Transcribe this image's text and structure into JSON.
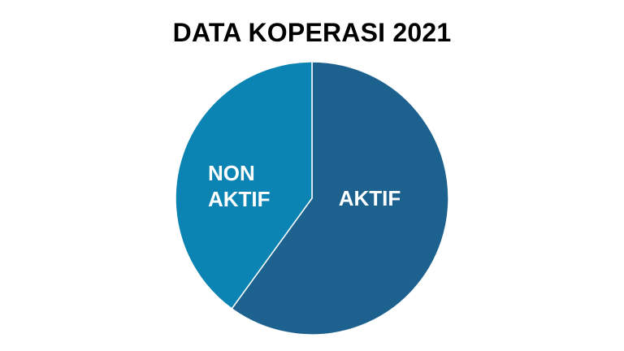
{
  "chart_data": {
    "type": "pie",
    "title": "DATA KOPERASI 2021",
    "slices": [
      {
        "label": "AKTIF",
        "value": 60,
        "color": "#1d628f"
      },
      {
        "label": "NON AKTIF",
        "value": 40,
        "color": "#0c84b3"
      }
    ],
    "start_angle_deg": 0,
    "direction": "clockwise",
    "legend": "none",
    "slice_border_color": "#ffffff"
  }
}
